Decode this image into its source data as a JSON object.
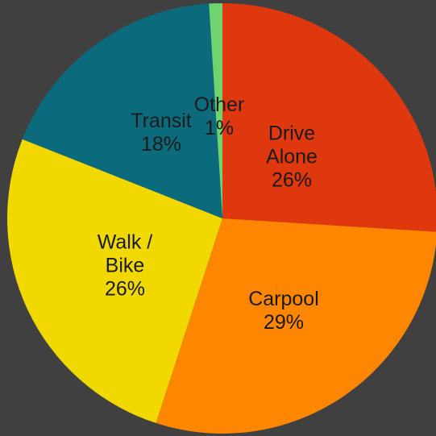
{
  "chart_data": {
    "type": "pie",
    "categories": [
      "Drive Alone",
      "Carpool",
      "Walk / Bike",
      "Transit",
      "Other"
    ],
    "values": [
      26,
      29,
      26,
      18,
      1
    ],
    "value_labels": [
      "26%",
      "29%",
      "26%",
      "18%",
      "1%"
    ],
    "colors": [
      "#e0380e",
      "#ff8600",
      "#f0d800",
      "#0b6b7c",
      "#6fd36f"
    ]
  }
}
